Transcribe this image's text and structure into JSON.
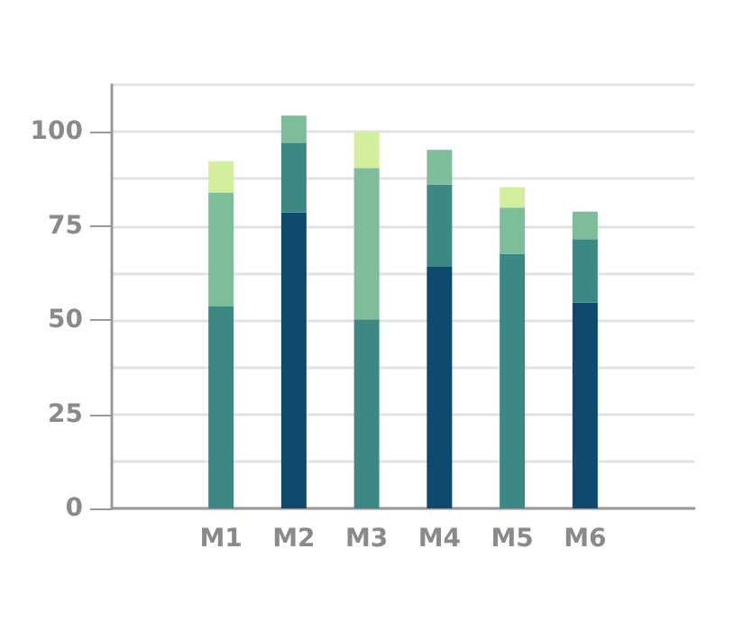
{
  "chart_data": {
    "type": "bar",
    "stacked": true,
    "categories": [
      "M1",
      "M2",
      "M3",
      "M4",
      "M5",
      "M6"
    ],
    "series": [
      {
        "color": "#0f4a6e",
        "values": [
          null,
          78.6,
          null,
          64.3,
          null,
          54.7
        ]
      },
      {
        "color": "#3d8884",
        "values": [
          53.6,
          18.5,
          50.2,
          21.7,
          67.6,
          16.8
        ]
      },
      {
        "color": "#7dbd99",
        "values": [
          30.3,
          7.2,
          40.2,
          9.2,
          12.3,
          7.3
        ]
      },
      {
        "color": "#d3ee9c",
        "values": [
          8.3,
          null,
          9.6,
          null,
          5.4,
          null
        ]
      }
    ],
    "ylim": [
      0,
      112.5
    ],
    "yticks": [
      0,
      {
        "value": 12.5,
        "label": null
      },
      25,
      {
        "value": 37.5,
        "label": null
      },
      50,
      {
        "value": 62.5,
        "label": null
      },
      75,
      {
        "value": 87.5,
        "label": null
      },
      100,
      {
        "value": 112.5,
        "label": null
      }
    ],
    "grid": "y"
  }
}
